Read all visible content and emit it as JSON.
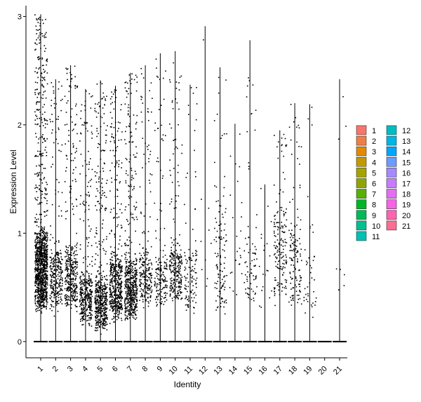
{
  "chart_data": {
    "type": "violin-jitter",
    "xlabel": "Identity",
    "ylabel": "Expression Level",
    "categories": [
      "1",
      "2",
      "3",
      "4",
      "5",
      "6",
      "7",
      "8",
      "9",
      "10",
      "11",
      "12",
      "13",
      "14",
      "15",
      "16",
      "17",
      "18",
      "19",
      "20",
      "21"
    ],
    "ylim": [
      -0.15,
      3.1
    ],
    "yticks": [
      0,
      1,
      2,
      3
    ],
    "max_values": [
      3.02,
      2.42,
      2.55,
      2.33,
      2.41,
      2.36,
      2.48,
      2.55,
      2.66,
      2.68,
      2.37,
      2.91,
      2.53,
      2.01,
      2.78,
      1.45,
      1.95,
      2.2,
      2.19,
      0.0,
      2.42
    ],
    "nonzero_points": [
      1200,
      300,
      380,
      380,
      520,
      520,
      560,
      230,
      170,
      260,
      120,
      10,
      120,
      25,
      75,
      20,
      160,
      130,
      40,
      0,
      8
    ],
    "dense_band": [
      [
        0.35,
        1.0
      ],
      [
        0.35,
        0.8
      ],
      [
        0.35,
        0.85
      ],
      [
        0.2,
        0.6
      ],
      [
        0.15,
        0.55
      ],
      [
        0.25,
        0.75
      ],
      [
        0.25,
        0.75
      ],
      [
        0.4,
        0.8
      ],
      [
        0.35,
        0.75
      ],
      [
        0.4,
        0.85
      ],
      [
        0.3,
        0.8
      ],
      [
        0.5,
        1.2
      ],
      [
        0.3,
        1.2
      ],
      [
        0.4,
        1.2
      ],
      [
        0.4,
        1.0
      ],
      [
        0.3,
        1.0
      ],
      [
        0.4,
        1.2
      ],
      [
        0.35,
        1.0
      ],
      [
        0.25,
        0.8
      ],
      [
        0.0,
        0.0
      ],
      [
        0.4,
        0.9
      ]
    ],
    "point_color": "#000000",
    "legend": {
      "placement": "right",
      "items": [
        {
          "label": "1",
          "color": "#F8766D"
        },
        {
          "label": "2",
          "color": "#EF7F46"
        },
        {
          "label": "3",
          "color": "#E28A00"
        },
        {
          "label": "4",
          "color": "#C29A00"
        },
        {
          "label": "5",
          "color": "#A5A300"
        },
        {
          "label": "6",
          "color": "#8EA500"
        },
        {
          "label": "7",
          "color": "#58B000"
        },
        {
          "label": "8",
          "color": "#00B526"
        },
        {
          "label": "9",
          "color": "#00BA57"
        },
        {
          "label": "10",
          "color": "#00BF91"
        },
        {
          "label": "11",
          "color": "#00C0B4"
        },
        {
          "label": "12",
          "color": "#00BDC2"
        },
        {
          "label": "13",
          "color": "#00B6E4"
        },
        {
          "label": "14",
          "color": "#00A5FF"
        },
        {
          "label": "15",
          "color": "#6B9CFF"
        },
        {
          "label": "16",
          "color": "#A58AFF"
        },
        {
          "label": "17",
          "color": "#C77CFF"
        },
        {
          "label": "18",
          "color": "#E56DF3"
        },
        {
          "label": "19",
          "color": "#F564E3"
        },
        {
          "label": "20",
          "color": "#FF64B0"
        },
        {
          "label": "21",
          "color": "#FF6C91"
        }
      ]
    }
  }
}
